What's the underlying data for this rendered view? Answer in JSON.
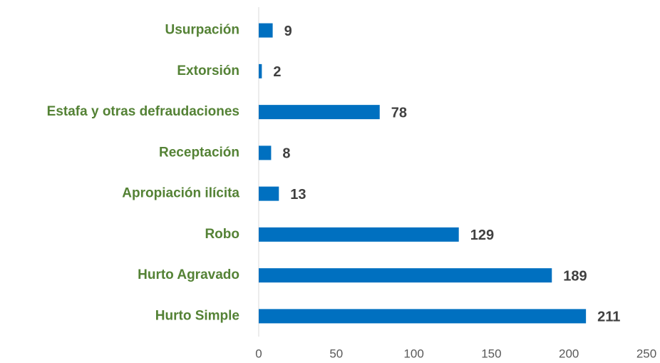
{
  "chart_data": {
    "type": "hbar",
    "categories": [
      "Usurpación",
      "Extorsión",
      "Estafa y otras defraudaciones",
      "Receptación",
      "Apropiación ilícita",
      "Robo",
      "Hurto Agravado",
      "Hurto Simple"
    ],
    "values": [
      9,
      2,
      78,
      8,
      13,
      129,
      189,
      211
    ],
    "color": "#0070c0",
    "xlim": [
      0,
      250
    ],
    "xticks": [
      0,
      50,
      100,
      150,
      200,
      250
    ],
    "grid": false
  }
}
